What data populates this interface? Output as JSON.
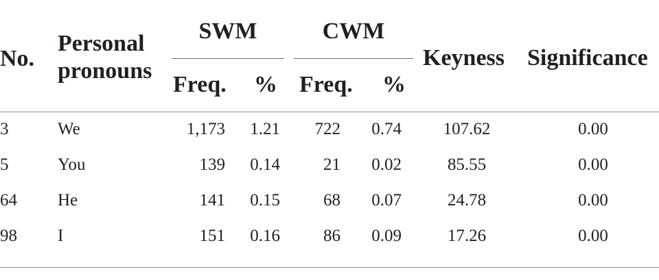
{
  "table": {
    "headers": {
      "no": "No.",
      "pronouns_line1": "Personal",
      "pronouns_line2": "pronouns",
      "swm": "SWM",
      "cwm": "CWM",
      "freq": "Freq.",
      "percent": "%",
      "keyness": "Keyness",
      "significance": "Significance"
    },
    "rows": [
      {
        "no": "3",
        "pronoun": "We",
        "swm_freq": "1,173",
        "swm_pct": "1.21",
        "cwm_freq": "722",
        "cwm_pct": "0.74",
        "keyness": "107.62",
        "significance": "0.00"
      },
      {
        "no": "5",
        "pronoun": "You",
        "swm_freq": "139",
        "swm_pct": "0.14",
        "cwm_freq": "21",
        "cwm_pct": "0.02",
        "keyness": "85.55",
        "significance": "0.00"
      },
      {
        "no": "64",
        "pronoun": "He",
        "swm_freq": "141",
        "swm_pct": "0.15",
        "cwm_freq": "68",
        "cwm_pct": "0.07",
        "keyness": "24.78",
        "significance": "0.00"
      },
      {
        "no": "98",
        "pronoun": "I",
        "swm_freq": "151",
        "swm_pct": "0.16",
        "cwm_freq": "86",
        "cwm_pct": "0.09",
        "keyness": "17.26",
        "significance": "0.00"
      }
    ]
  }
}
